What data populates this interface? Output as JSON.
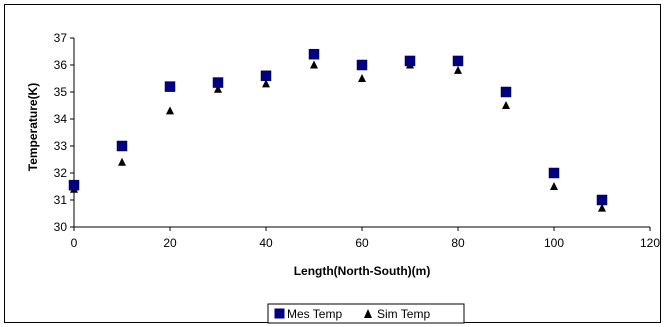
{
  "chart_data": {
    "type": "scatter",
    "xlabel": "Length(North-South)(m)",
    "ylabel": "Temperature(K)",
    "xlim": [
      0,
      120
    ],
    "ylim": [
      30,
      37
    ],
    "x_ticks": [
      "0",
      "20",
      "40",
      "60",
      "80",
      "100",
      "120"
    ],
    "y_ticks": [
      "30",
      "31",
      "32",
      "33",
      "34",
      "35",
      "36",
      "37"
    ],
    "grid": false,
    "legend": "bottom-center",
    "series": [
      {
        "name": "Mes Temp",
        "marker": "square",
        "color": "#000080",
        "points": [
          {
            "x": 0,
            "y": 31.55
          },
          {
            "x": 10,
            "y": 33.0
          },
          {
            "x": 20,
            "y": 35.2
          },
          {
            "x": 30,
            "y": 35.35
          },
          {
            "x": 40,
            "y": 35.6
          },
          {
            "x": 50,
            "y": 36.4
          },
          {
            "x": 60,
            "y": 36.0
          },
          {
            "x": 70,
            "y": 36.15
          },
          {
            "x": 80,
            "y": 36.15
          },
          {
            "x": 90,
            "y": 35.0
          },
          {
            "x": 100,
            "y": 32.0
          },
          {
            "x": 110,
            "y": 31.0
          }
        ]
      },
      {
        "name": "Sim Temp",
        "marker": "triangle",
        "color": "#000000",
        "points": [
          {
            "x": 0,
            "y": 31.4
          },
          {
            "x": 10,
            "y": 32.4
          },
          {
            "x": 20,
            "y": 34.3
          },
          {
            "x": 30,
            "y": 35.1
          },
          {
            "x": 40,
            "y": 35.3
          },
          {
            "x": 50,
            "y": 36.0
          },
          {
            "x": 60,
            "y": 35.5
          },
          {
            "x": 70,
            "y": 36.0
          },
          {
            "x": 80,
            "y": 35.8
          },
          {
            "x": 90,
            "y": 34.5
          },
          {
            "x": 100,
            "y": 31.5
          },
          {
            "x": 110,
            "y": 30.7
          }
        ]
      }
    ]
  }
}
